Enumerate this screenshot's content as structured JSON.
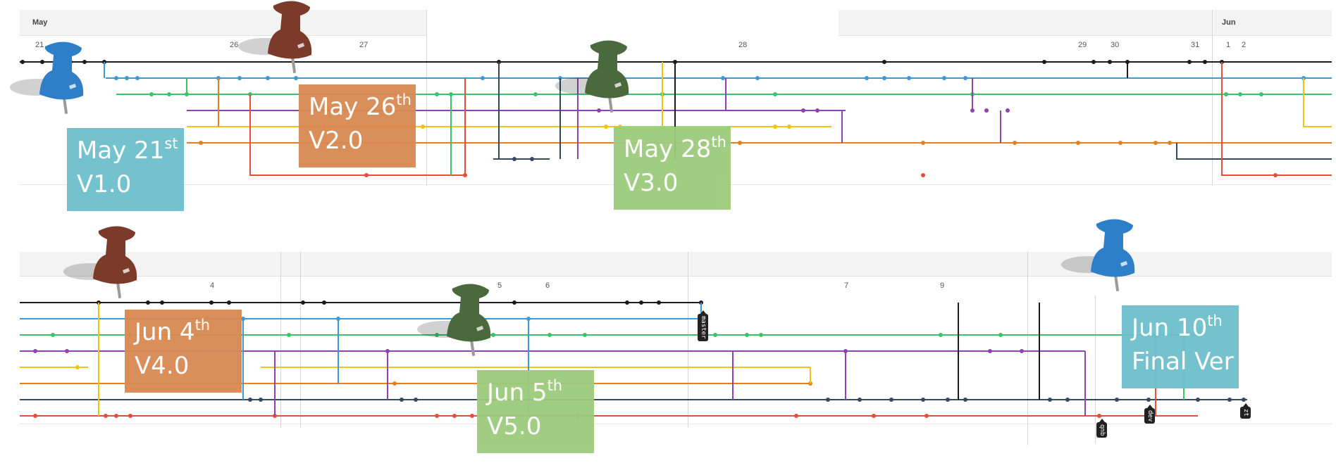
{
  "timeline_top": {
    "months": [
      {
        "label": "May"
      },
      {
        "label": "Jun"
      }
    ],
    "days": [
      "21",
      "26",
      "27",
      "28",
      "29",
      "30",
      "31",
      "1",
      "2"
    ]
  },
  "timeline_bottom": {
    "days": [
      "4",
      "5",
      "6",
      "7",
      "9"
    ]
  },
  "milestones": [
    {
      "date": "May 21",
      "suffix": "st",
      "version": "V1.0",
      "color": "teal"
    },
    {
      "date": "May 26",
      "suffix": "th",
      "version": "V2.0",
      "color": "orange"
    },
    {
      "date": "May 28",
      "suffix": "th",
      "version": "V3.0",
      "color": "green"
    },
    {
      "date": "Jun 4",
      "suffix": "th",
      "version": "V4.0",
      "color": "orange"
    },
    {
      "date": "Jun 5",
      "suffix": "th",
      "version": "V5.0",
      "color": "green"
    },
    {
      "date": "Jun 10",
      "suffix": "th",
      "version": "Final Ver",
      "color": "teal"
    }
  ],
  "branch_tags": [
    "master",
    "dev",
    "qnb",
    "zt"
  ],
  "pins": [
    "blue-pin",
    "brown-pin",
    "green-pin",
    "brown-pin",
    "green-pin",
    "blue-pin"
  ],
  "colors": {
    "black": "#1a1a1a",
    "blue": "#3a9ad9",
    "green": "#3cc36a",
    "purple": "#8e44ad",
    "yellow": "#f1c40f",
    "orange": "#e67e22",
    "navy": "#34495e",
    "red": "#e74c3c",
    "teal_note": "#6dbfcb",
    "orange_note": "#d98a52",
    "green_note": "#9ccb7c",
    "pin_blue": "#2f7fc8",
    "pin_brown": "#7b3a2a",
    "pin_green": "#4a6a3e"
  }
}
